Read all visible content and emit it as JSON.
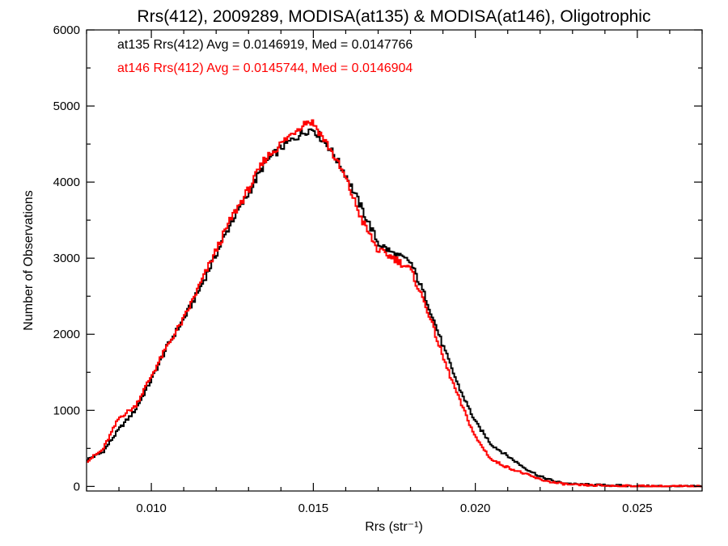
{
  "chart_data": {
    "type": "line",
    "title": "Rrs(412), 2009289, MODISA(at135) & MODISA(at146), Oligotrophic",
    "xlabel": "Rrs (str⁻¹)",
    "ylabel": "Number of Observations",
    "xlim": [
      0.008,
      0.027
    ],
    "ylim": [
      -60,
      6000
    ],
    "xticks": [
      {
        "value": 0.01,
        "label": "0.010"
      },
      {
        "value": 0.015,
        "label": "0.015"
      },
      {
        "value": 0.02,
        "label": "0.020"
      },
      {
        "value": 0.025,
        "label": "0.025"
      }
    ],
    "yticks": [
      {
        "value": 0,
        "label": "0"
      },
      {
        "value": 1000,
        "label": "1000"
      },
      {
        "value": 2000,
        "label": "2000"
      },
      {
        "value": 3000,
        "label": "3000"
      },
      {
        "value": 4000,
        "label": "4000"
      },
      {
        "value": 5000,
        "label": "5000"
      },
      {
        "value": 6000,
        "label": "6000"
      }
    ],
    "grid": false,
    "step": true,
    "annotations": [
      {
        "text": "at135 Rrs(412) Avg = 0.0146919, Med = 0.0147766",
        "color": "#000000"
      },
      {
        "text": "at146 Rrs(412) Avg = 0.0145744, Med = 0.0146904",
        "color": "#ff0000"
      }
    ],
    "series": [
      {
        "color": "#000000",
        "x": [
          0.008,
          0.0085,
          0.009,
          0.0095,
          0.01,
          0.0105,
          0.011,
          0.0115,
          0.012,
          0.0125,
          0.013,
          0.0135,
          0.014,
          0.0145,
          0.0148,
          0.015,
          0.0152,
          0.0155,
          0.016,
          0.0165,
          0.017,
          0.0175,
          0.018,
          0.0185,
          0.019,
          0.0195,
          0.02,
          0.0205,
          0.021,
          0.0215,
          0.022,
          0.0225,
          0.023,
          0.024,
          0.025,
          0.026,
          0.027
        ],
        "y": [
          350,
          450,
          750,
          1000,
          1400,
          1850,
          2200,
          2600,
          3050,
          3500,
          3850,
          4250,
          4450,
          4600,
          4680,
          4700,
          4600,
          4450,
          4100,
          3650,
          3200,
          3050,
          2950,
          2450,
          1850,
          1300,
          850,
          550,
          400,
          250,
          130,
          60,
          30,
          15,
          5,
          2,
          0
        ]
      },
      {
        "color": "#ff0000",
        "x": [
          0.008,
          0.0085,
          0.009,
          0.0095,
          0.01,
          0.0105,
          0.011,
          0.0115,
          0.012,
          0.0125,
          0.013,
          0.0135,
          0.014,
          0.0145,
          0.0148,
          0.015,
          0.0152,
          0.0155,
          0.016,
          0.0165,
          0.017,
          0.0175,
          0.018,
          0.0185,
          0.019,
          0.0195,
          0.02,
          0.0205,
          0.021,
          0.0215,
          0.022,
          0.0225,
          0.023,
          0.024,
          0.025,
          0.026,
          0.027
        ],
        "y": [
          330,
          480,
          900,
          1050,
          1450,
          1850,
          2200,
          2650,
          3100,
          3550,
          3900,
          4300,
          4500,
          4700,
          4800,
          4780,
          4650,
          4450,
          4050,
          3500,
          3100,
          3000,
          2850,
          2350,
          1700,
          1150,
          650,
          350,
          250,
          170,
          90,
          45,
          20,
          10,
          4,
          1,
          0
        ]
      }
    ]
  }
}
